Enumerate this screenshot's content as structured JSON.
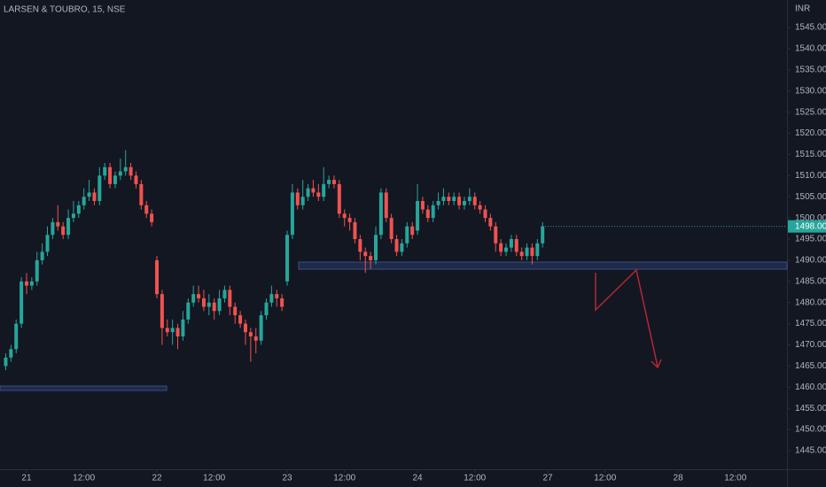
{
  "chart_data": {
    "type": "candlestick",
    "title": "LARSEN & TOUBRO, 15, NSE",
    "y_axis_label": "INR",
    "up_color": "#26a69a",
    "down_color": "#ef5350",
    "grid": false,
    "x": [
      -4,
      -3,
      -2,
      -1,
      0,
      1,
      2,
      3,
      4,
      5,
      6,
      7,
      8,
      9,
      10,
      11,
      12,
      13,
      14,
      15,
      16,
      17,
      18,
      19,
      20,
      21,
      22,
      23,
      24,
      25,
      26,
      27,
      28,
      29,
      30,
      31,
      32,
      33,
      34,
      35,
      36,
      37,
      38,
      39,
      40,
      41,
      42,
      43,
      44,
      45,
      46,
      47,
      48,
      49,
      50,
      51,
      52,
      53,
      54,
      55,
      56,
      57,
      58,
      59,
      60,
      61,
      62,
      63,
      64,
      65,
      66,
      67,
      68,
      69,
      70,
      71,
      72,
      73,
      74,
      75,
      76,
      77,
      78,
      79,
      80,
      81,
      82,
      83,
      84,
      85,
      86,
      87,
      88,
      89,
      90,
      91,
      92,
      93,
      94,
      95,
      96,
      97,
      98,
      99
    ],
    "open": [
      1465,
      1467,
      1469,
      1475,
      1485,
      1484,
      1485,
      1490,
      1492,
      1496,
      1499,
      1498,
      1496,
      1500,
      1501,
      1503,
      1505,
      1506,
      1504,
      1510,
      1512,
      1508,
      1510,
      1511,
      1512,
      1510,
      1508,
      1503,
      1501,
      1490,
      1482,
      1474,
      1473,
      1474,
      1472,
      1476,
      1480,
      1482,
      1481,
      1479,
      1480,
      1478,
      1481,
      1483,
      1479,
      1477,
      1475,
      1473,
      1472,
      1471,
      1477,
      1480,
      1482,
      1481,
      1485,
      1496,
      1506,
      1503,
      1505,
      1507,
      1506,
      1505,
      1508,
      1509,
      1508,
      1501,
      1500,
      1499,
      1495,
      1492,
      1491,
      1490,
      1496,
      1506,
      1500,
      1495,
      1492,
      1494,
      1498,
      1497,
      1504,
      1502,
      1500,
      1503,
      1504,
      1505,
      1504,
      1505,
      1503,
      1504,
      1505,
      1503,
      1502,
      1500,
      1498,
      1494,
      1492,
      1493,
      1495,
      1492,
      1491,
      1493,
      1491,
      1494
    ],
    "high": [
      1468,
      1470,
      1476,
      1486,
      1487,
      1486,
      1492,
      1494,
      1498,
      1500,
      1503,
      1499,
      1502,
      1504,
      1504,
      1507,
      1509,
      1507,
      1512,
      1513,
      1513,
      1511,
      1514,
      1516,
      1513,
      1511,
      1509,
      1504,
      1502,
      1491,
      1483,
      1476,
      1476,
      1475,
      1478,
      1481,
      1484,
      1484,
      1483,
      1482,
      1481,
      1483,
      1484,
      1484,
      1480,
      1478,
      1476,
      1474,
      1474,
      1478,
      1481,
      1484,
      1483,
      1482,
      1497,
      1508,
      1507,
      1509,
      1508,
      1509,
      1508,
      1512,
      1510,
      1510,
      1509,
      1502,
      1501,
      1500,
      1496,
      1493,
      1492,
      1498,
      1507,
      1507,
      1501,
      1496,
      1495,
      1499,
      1499,
      1508,
      1505,
      1503,
      1504,
      1506,
      1507,
      1506,
      1506,
      1506,
      1505,
      1507,
      1506,
      1504,
      1503,
      1501,
      1499,
      1495,
      1494,
      1496,
      1496,
      1493,
      1494,
      1494,
      1495,
      1499
    ],
    "low": [
      1464,
      1466,
      1468,
      1474,
      1482,
      1483,
      1484,
      1489,
      1491,
      1495,
      1497,
      1495,
      1495,
      1499,
      1500,
      1502,
      1504,
      1503,
      1503,
      1509,
      1507,
      1507,
      1509,
      1510,
      1509,
      1507,
      1502,
      1500,
      1498,
      1481,
      1470,
      1472,
      1470,
      1469,
      1471,
      1475,
      1479,
      1480,
      1478,
      1477,
      1476,
      1477,
      1480,
      1477,
      1475,
      1474,
      1470,
      1466,
      1468,
      1470,
      1476,
      1479,
      1479,
      1478,
      1484,
      1495,
      1502,
      1502,
      1504,
      1505,
      1504,
      1504,
      1507,
      1507,
      1500,
      1498,
      1497,
      1494,
      1490,
      1487,
      1488,
      1489,
      1495,
      1499,
      1494,
      1491,
      1491,
      1493,
      1495,
      1496,
      1501,
      1499,
      1499,
      1502,
      1503,
      1503,
      1503,
      1502,
      1502,
      1503,
      1502,
      1501,
      1499,
      1497,
      1492,
      1491,
      1491,
      1492,
      1491,
      1490,
      1490,
      1489,
      1490,
      1493
    ],
    "close": [
      1467,
      1469,
      1475,
      1485,
      1484,
      1485,
      1490,
      1492,
      1496,
      1499,
      1498,
      1496,
      1500,
      1501,
      1503,
      1505,
      1506,
      1504,
      1510,
      1512,
      1508,
      1510,
      1511,
      1512,
      1510,
      1508,
      1503,
      1501,
      1499,
      1482,
      1474,
      1473,
      1474,
      1472,
      1476,
      1480,
      1482,
      1481,
      1479,
      1480,
      1478,
      1481,
      1483,
      1479,
      1477,
      1475,
      1473,
      1472,
      1471,
      1477,
      1480,
      1482,
      1481,
      1479,
      1496,
      1506,
      1503,
      1505,
      1507,
      1506,
      1505,
      1508,
      1509,
      1508,
      1501,
      1500,
      1499,
      1495,
      1492,
      1491,
      1490,
      1496,
      1506,
      1500,
      1495,
      1492,
      1494,
      1498,
      1496,
      1504,
      1502,
      1500,
      1503,
      1504,
      1505,
      1504,
      1505,
      1503,
      1504,
      1505,
      1503,
      1502,
      1500,
      1498,
      1494,
      1492,
      1493,
      1495,
      1492,
      1491,
      1493,
      1491,
      1494,
      1498
    ],
    "xlim": [
      -5.1,
      145.9
    ],
    "xticks": [
      {
        "value": 0,
        "label": "21"
      },
      {
        "value": 11,
        "label": "12:00"
      },
      {
        "value": 25,
        "label": "22"
      },
      {
        "value": 36,
        "label": "12:00"
      },
      {
        "value": 50,
        "label": "23"
      },
      {
        "value": 61,
        "label": "12:00"
      },
      {
        "value": 75,
        "label": "24"
      },
      {
        "value": 86,
        "label": "12:00"
      },
      {
        "value": 100,
        "label": "27"
      },
      {
        "value": 111,
        "label": "12:00"
      },
      {
        "value": 125,
        "label": "28"
      },
      {
        "value": 136,
        "label": "12:00"
      }
    ],
    "ylim": [
      1440.6,
      1551.5
    ],
    "yticks": [
      {
        "value": 1445,
        "label": "1445.00"
      },
      {
        "value": 1450,
        "label": "1450.00"
      },
      {
        "value": 1455,
        "label": "1455.00"
      },
      {
        "value": 1460,
        "label": "1460.00"
      },
      {
        "value": 1465,
        "label": "1465.00"
      },
      {
        "value": 1470,
        "label": "1470.00"
      },
      {
        "value": 1475,
        "label": "1475.00"
      },
      {
        "value": 1480,
        "label": "1480.00"
      },
      {
        "value": 1485,
        "label": "1485.00"
      },
      {
        "value": 1490,
        "label": "1490.00"
      },
      {
        "value": 1495,
        "label": "1495.00"
      },
      {
        "value": 1500,
        "label": "1500.00"
      },
      {
        "value": 1505,
        "label": "1505.00"
      },
      {
        "value": 1510,
        "label": "1510.00"
      },
      {
        "value": 1515,
        "label": "1515.00"
      },
      {
        "value": 1520,
        "label": "1520.00"
      },
      {
        "value": 1525,
        "label": "1525.00"
      },
      {
        "value": 1530,
        "label": "1530.00"
      },
      {
        "value": 1535,
        "label": "1535.00"
      },
      {
        "value": 1540,
        "label": "1540.00"
      },
      {
        "value": 1545,
        "label": "1545.00"
      }
    ],
    "last_price": {
      "value": 1498,
      "label": "1498.00"
    }
  }
}
